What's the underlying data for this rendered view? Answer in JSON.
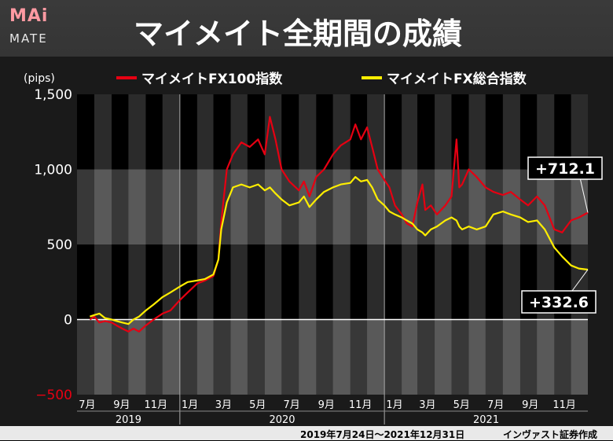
{
  "header": {
    "logo_top": "MAi",
    "logo_bottom": "MATE",
    "title": "マイメイト全期間の成績"
  },
  "footer": {
    "period": "2019年7月24日〜2021年12月31日",
    "credit": "インヴァスト証券作成"
  },
  "chart_data": {
    "type": "line",
    "title": "マイメイト全期間の成績",
    "ylabel": "(pips)",
    "ylim": [
      -500,
      1500
    ],
    "yticks": [
      "1,500",
      "1,000",
      "500",
      "0",
      "−500"
    ],
    "ytick_values": [
      1500,
      1000,
      500,
      0,
      -500
    ],
    "xlim": [
      "2019-07-01",
      "2021-12-31"
    ],
    "month_ticks": [
      {
        "date": "2019-07",
        "label": "7月"
      },
      {
        "date": "2019-09",
        "label": "9月"
      },
      {
        "date": "2019-11",
        "label": "11月"
      },
      {
        "date": "2020-01",
        "label": "1月"
      },
      {
        "date": "2020-03",
        "label": "3月"
      },
      {
        "date": "2020-05",
        "label": "5月"
      },
      {
        "date": "2020-07",
        "label": "7月"
      },
      {
        "date": "2020-09",
        "label": "9月"
      },
      {
        "date": "2020-11",
        "label": "11月"
      },
      {
        "date": "2021-01",
        "label": "1月"
      },
      {
        "date": "2021-03",
        "label": "3月"
      },
      {
        "date": "2021-05",
        "label": "5月"
      },
      {
        "date": "2021-07",
        "label": "7月"
      },
      {
        "date": "2021-09",
        "label": "9月"
      },
      {
        "date": "2021-11",
        "label": "11月"
      }
    ],
    "years": [
      "2019",
      "2020",
      "2021"
    ],
    "legend_position": "top",
    "colors": {
      "fx100": "#e60012",
      "fx_total": "#ffee00"
    },
    "series": [
      {
        "name": "マイメイトFX100指数",
        "color": "#e60012",
        "end_label": "+712.1",
        "points": [
          [
            "2019-07-24",
            0
          ],
          [
            "2019-08-01",
            20
          ],
          [
            "2019-08-10",
            -20
          ],
          [
            "2019-08-20",
            -10
          ],
          [
            "2019-09-01",
            -20
          ],
          [
            "2019-09-10",
            -40
          ],
          [
            "2019-09-20",
            -60
          ],
          [
            "2019-10-01",
            -80
          ],
          [
            "2019-10-10",
            -60
          ],
          [
            "2019-10-20",
            -80
          ],
          [
            "2019-11-01",
            -40
          ],
          [
            "2019-11-15",
            0
          ],
          [
            "2019-12-01",
            40
          ],
          [
            "2019-12-15",
            60
          ],
          [
            "2020-01-01",
            130
          ],
          [
            "2020-01-15",
            180
          ],
          [
            "2020-02-01",
            240
          ],
          [
            "2020-02-15",
            260
          ],
          [
            "2020-03-01",
            290
          ],
          [
            "2020-03-10",
            400
          ],
          [
            "2020-03-15",
            650
          ],
          [
            "2020-03-25",
            1000
          ],
          [
            "2020-04-05",
            1100
          ],
          [
            "2020-04-20",
            1180
          ],
          [
            "2020-05-05",
            1150
          ],
          [
            "2020-05-20",
            1200
          ],
          [
            "2020-06-01",
            1100
          ],
          [
            "2020-06-10",
            1350
          ],
          [
            "2020-06-20",
            1200
          ],
          [
            "2020-07-01",
            1000
          ],
          [
            "2020-07-15",
            920
          ],
          [
            "2020-08-01",
            860
          ],
          [
            "2020-08-10",
            920
          ],
          [
            "2020-08-20",
            820
          ],
          [
            "2020-09-01",
            950
          ],
          [
            "2020-09-15",
            1000
          ],
          [
            "2020-10-01",
            1100
          ],
          [
            "2020-10-15",
            1160
          ],
          [
            "2020-11-01",
            1200
          ],
          [
            "2020-11-10",
            1300
          ],
          [
            "2020-11-20",
            1200
          ],
          [
            "2020-12-01",
            1280
          ],
          [
            "2020-12-10",
            1150
          ],
          [
            "2020-12-20",
            1000
          ],
          [
            "2021-01-01",
            930
          ],
          [
            "2021-01-10",
            880
          ],
          [
            "2021-01-20",
            760
          ],
          [
            "2021-02-01",
            700
          ],
          [
            "2021-02-10",
            640
          ],
          [
            "2021-02-20",
            620
          ],
          [
            "2021-03-01",
            780
          ],
          [
            "2021-03-10",
            900
          ],
          [
            "2021-03-15",
            730
          ],
          [
            "2021-03-25",
            760
          ],
          [
            "2021-04-05",
            700
          ],
          [
            "2021-04-20",
            760
          ],
          [
            "2021-05-01",
            820
          ],
          [
            "2021-05-10",
            1200
          ],
          [
            "2021-05-15",
            880
          ],
          [
            "2021-05-20",
            900
          ],
          [
            "2021-06-01",
            1000
          ],
          [
            "2021-06-15",
            950
          ],
          [
            "2021-07-01",
            880
          ],
          [
            "2021-07-15",
            850
          ],
          [
            "2021-08-01",
            830
          ],
          [
            "2021-08-15",
            850
          ],
          [
            "2021-09-01",
            800
          ],
          [
            "2021-09-15",
            760
          ],
          [
            "2021-10-01",
            820
          ],
          [
            "2021-10-15",
            760
          ],
          [
            "2021-11-01",
            600
          ],
          [
            "2021-11-15",
            580
          ],
          [
            "2021-12-01",
            660
          ],
          [
            "2021-12-15",
            680
          ],
          [
            "2021-12-31",
            712.1
          ]
        ]
      },
      {
        "name": "マイメイトFX総合指数",
        "color": "#ffee00",
        "end_label": "+332.6",
        "points": [
          [
            "2019-07-24",
            20
          ],
          [
            "2019-08-01",
            30
          ],
          [
            "2019-08-10",
            40
          ],
          [
            "2019-08-20",
            10
          ],
          [
            "2019-09-01",
            0
          ],
          [
            "2019-09-10",
            -10
          ],
          [
            "2019-09-20",
            -20
          ],
          [
            "2019-10-01",
            -30
          ],
          [
            "2019-10-10",
            0
          ],
          [
            "2019-10-20",
            20
          ],
          [
            "2019-11-01",
            60
          ],
          [
            "2019-11-15",
            100
          ],
          [
            "2019-12-01",
            150
          ],
          [
            "2019-12-15",
            180
          ],
          [
            "2020-01-01",
            220
          ],
          [
            "2020-01-15",
            250
          ],
          [
            "2020-02-01",
            260
          ],
          [
            "2020-02-15",
            270
          ],
          [
            "2020-03-01",
            300
          ],
          [
            "2020-03-10",
            400
          ],
          [
            "2020-03-15",
            600
          ],
          [
            "2020-03-25",
            780
          ],
          [
            "2020-04-05",
            880
          ],
          [
            "2020-04-20",
            900
          ],
          [
            "2020-05-05",
            880
          ],
          [
            "2020-05-20",
            900
          ],
          [
            "2020-06-01",
            860
          ],
          [
            "2020-06-10",
            880
          ],
          [
            "2020-06-20",
            840
          ],
          [
            "2020-07-01",
            800
          ],
          [
            "2020-07-15",
            760
          ],
          [
            "2020-08-01",
            780
          ],
          [
            "2020-08-10",
            820
          ],
          [
            "2020-08-20",
            750
          ],
          [
            "2020-09-01",
            800
          ],
          [
            "2020-09-15",
            850
          ],
          [
            "2020-10-01",
            880
          ],
          [
            "2020-10-15",
            900
          ],
          [
            "2020-11-01",
            910
          ],
          [
            "2020-11-10",
            950
          ],
          [
            "2020-11-20",
            920
          ],
          [
            "2020-12-01",
            930
          ],
          [
            "2020-12-10",
            880
          ],
          [
            "2020-12-20",
            800
          ],
          [
            "2021-01-01",
            760
          ],
          [
            "2021-01-10",
            720
          ],
          [
            "2021-01-20",
            700
          ],
          [
            "2021-02-01",
            680
          ],
          [
            "2021-02-10",
            660
          ],
          [
            "2021-02-20",
            640
          ],
          [
            "2021-03-01",
            600
          ],
          [
            "2021-03-10",
            580
          ],
          [
            "2021-03-15",
            560
          ],
          [
            "2021-03-25",
            600
          ],
          [
            "2021-04-05",
            620
          ],
          [
            "2021-04-20",
            660
          ],
          [
            "2021-05-01",
            680
          ],
          [
            "2021-05-10",
            660
          ],
          [
            "2021-05-15",
            620
          ],
          [
            "2021-05-20",
            600
          ],
          [
            "2021-06-01",
            620
          ],
          [
            "2021-06-15",
            600
          ],
          [
            "2021-07-01",
            620
          ],
          [
            "2021-07-15",
            700
          ],
          [
            "2021-08-01",
            720
          ],
          [
            "2021-08-15",
            700
          ],
          [
            "2021-09-01",
            680
          ],
          [
            "2021-09-15",
            650
          ],
          [
            "2021-10-01",
            660
          ],
          [
            "2021-10-15",
            600
          ],
          [
            "2021-11-01",
            480
          ],
          [
            "2021-11-15",
            420
          ],
          [
            "2021-12-01",
            360
          ],
          [
            "2021-12-15",
            340
          ],
          [
            "2021-12-31",
            332.6
          ]
        ]
      }
    ]
  }
}
